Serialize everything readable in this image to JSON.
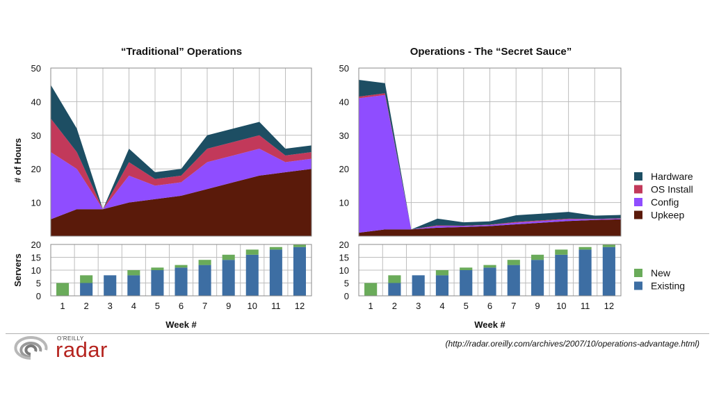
{
  "chart_data": [
    {
      "type": "area",
      "stacked": true,
      "title": "“Traditional” Operations",
      "ylabel": "# of Hours",
      "ylim": [
        0,
        50
      ],
      "yticks": [
        10,
        20,
        30,
        40,
        50
      ],
      "categories": [
        "1",
        "2",
        "3",
        "4",
        "5",
        "6",
        "7",
        "9",
        "10",
        "11",
        "12"
      ],
      "grid": true,
      "series": [
        {
          "name": "Upkeep",
          "color": "#5a1a0a",
          "values": [
            5,
            8,
            8,
            10,
            11,
            12,
            14,
            16,
            18,
            19,
            20
          ]
        },
        {
          "name": "Config",
          "color": "#8f4dff",
          "values": [
            20,
            12,
            0,
            8,
            4,
            4,
            8,
            8,
            8,
            3,
            3
          ]
        },
        {
          "name": "OS Install",
          "color": "#c2395a",
          "values": [
            10,
            5,
            0,
            4,
            2,
            2,
            4,
            4,
            4,
            2,
            2
          ]
        },
        {
          "name": "Hardware",
          "color": "#1d4e63",
          "values": [
            10,
            7,
            0,
            4,
            2,
            2,
            4,
            4,
            4,
            2,
            2
          ]
        }
      ]
    },
    {
      "type": "area",
      "stacked": true,
      "title": "Operations - The “Secret Sauce”",
      "ylabel": "",
      "ylim": [
        0,
        50
      ],
      "yticks": [
        10,
        20,
        30,
        40,
        50
      ],
      "categories": [
        "1",
        "2",
        "3",
        "4",
        "5",
        "6",
        "7",
        "9",
        "10",
        "11",
        "12"
      ],
      "grid": true,
      "legend": "right",
      "series": [
        {
          "name": "Upkeep",
          "color": "#5a1a0a",
          "values": [
            1,
            2,
            2,
            2.5,
            2.7,
            3,
            3.5,
            4,
            4.5,
            4.8,
            5
          ]
        },
        {
          "name": "Config",
          "color": "#8f4dff",
          "values": [
            40,
            40,
            0,
            0.5,
            0.3,
            0.3,
            0.5,
            0.5,
            0.5,
            0.2,
            0.2
          ]
        },
        {
          "name": "OS Install",
          "color": "#c2395a",
          "values": [
            0.5,
            0.5,
            0,
            0.2,
            0.1,
            0.1,
            0.2,
            0.2,
            0.2,
            0.1,
            0.1
          ]
        },
        {
          "name": "Hardware",
          "color": "#1d4e63",
          "values": [
            5,
            3,
            0,
            2,
            1,
            1,
            2,
            2,
            2,
            1,
            1
          ]
        }
      ]
    },
    {
      "type": "bar",
      "stacked": true,
      "title": "",
      "ylabel": "Servers",
      "xlabel": "Week #",
      "ylim": [
        0,
        20
      ],
      "yticks": [
        0,
        5,
        10,
        15,
        20
      ],
      "categories": [
        "1",
        "2",
        "3",
        "4",
        "5",
        "6",
        "7",
        "9",
        "10",
        "11",
        "12"
      ],
      "grid": true,
      "series": [
        {
          "name": "Existing",
          "color": "#3d6ea3",
          "values": [
            0,
            5,
            8,
            8,
            10,
            11,
            12,
            14,
            16,
            18,
            19
          ]
        },
        {
          "name": "New",
          "color": "#6aab5a",
          "values": [
            5,
            3,
            0,
            2,
            1,
            1,
            2,
            2,
            2,
            1,
            1
          ]
        }
      ]
    },
    {
      "type": "bar",
      "stacked": true,
      "title": "",
      "ylabel": "",
      "xlabel": "Week #",
      "ylim": [
        0,
        20
      ],
      "yticks": [
        0,
        5,
        10,
        15,
        20
      ],
      "categories": [
        "1",
        "2",
        "3",
        "4",
        "5",
        "6",
        "7",
        "9",
        "10",
        "11",
        "12"
      ],
      "grid": true,
      "legend": "right",
      "series": [
        {
          "name": "Existing",
          "color": "#3d6ea3",
          "values": [
            0,
            5,
            8,
            8,
            10,
            11,
            12,
            14,
            16,
            18,
            19
          ]
        },
        {
          "name": "New",
          "color": "#6aab5a",
          "values": [
            5,
            3,
            0,
            2,
            1,
            1,
            2,
            2,
            2,
            1,
            1
          ]
        }
      ]
    }
  ],
  "legend_hours": [
    "Hardware",
    "OS Install",
    "Config",
    "Upkeep"
  ],
  "legend_servers": [
    "New",
    "Existing"
  ],
  "footer": {
    "logo_small": "O'REILLY",
    "logo_word": "radar",
    "source_url": "(http://radar.oreilly.com/archives/2007/10/operations-advantage.html)"
  }
}
